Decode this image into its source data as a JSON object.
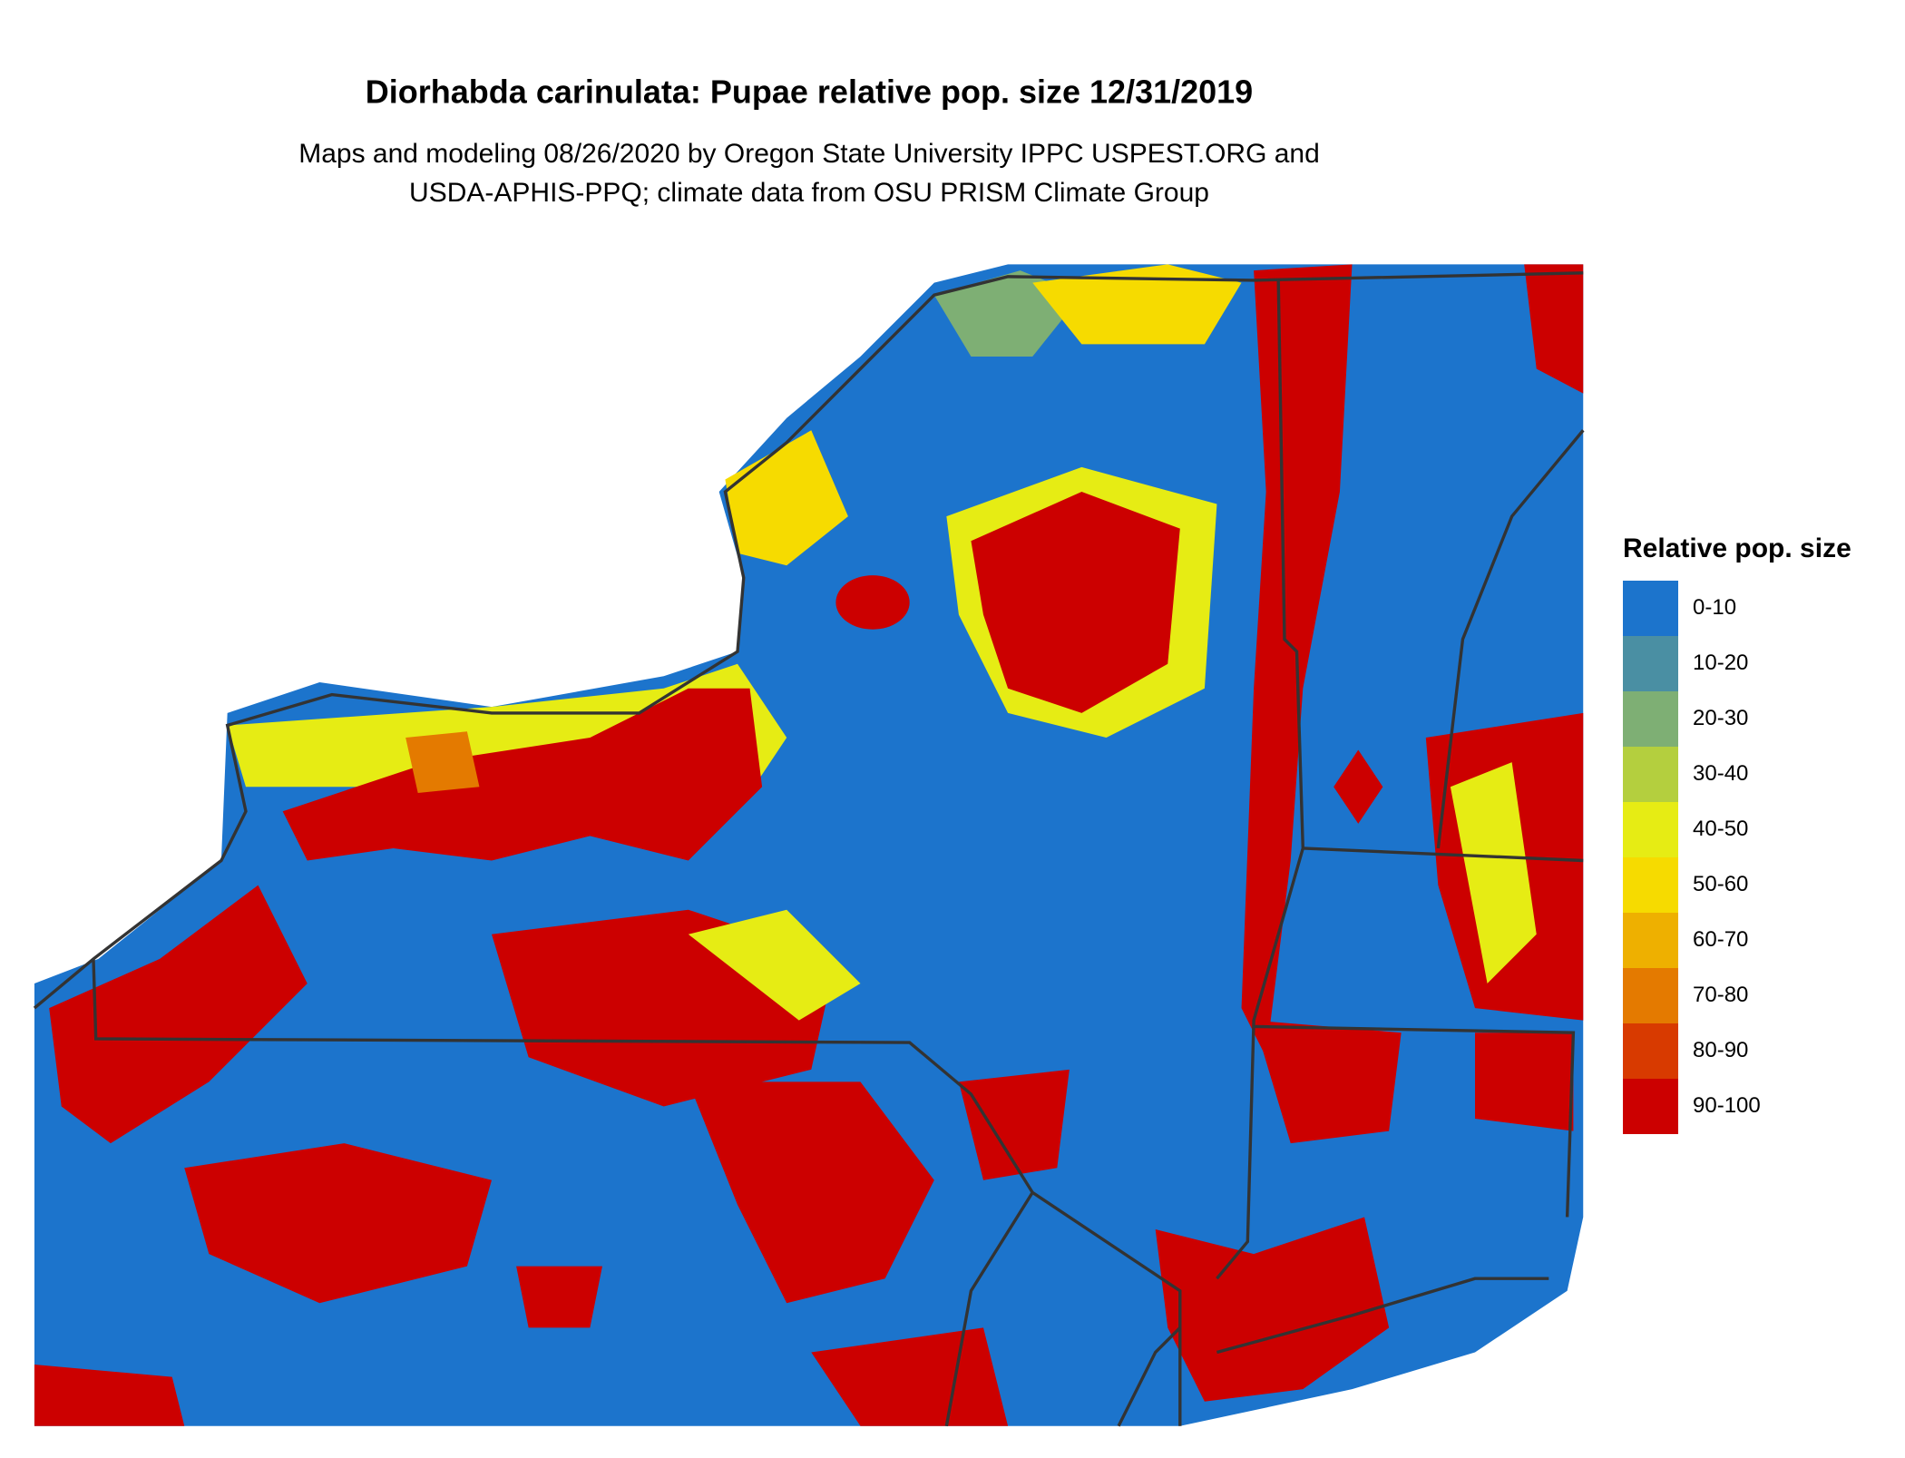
{
  "title": "Diorhabda carinulata: Pupae relative pop. size 12/31/2019",
  "subtitle": [
    "Maps and modeling 08/26/2020 by Oregon State University IPPC USPEST.ORG and",
    "USDA-APHIS-PPQ; climate data from OSU PRISM Climate Group"
  ],
  "legend": {
    "title": "Relative pop. size",
    "items": [
      {
        "label": "0-10",
        "color": "#1c74cc"
      },
      {
        "label": "10-20",
        "color": "#4a8fa3"
      },
      {
        "label": "20-30",
        "color": "#7eaf74"
      },
      {
        "label": "30-40",
        "color": "#b4cf3e"
      },
      {
        "label": "40-50",
        "color": "#e6ec14"
      },
      {
        "label": "50-60",
        "color": "#f6db00"
      },
      {
        "label": "60-70",
        "color": "#eeb000"
      },
      {
        "label": "70-80",
        "color": "#e47a00"
      },
      {
        "label": "80-90",
        "color": "#d83a00"
      },
      {
        "label": "90-100",
        "color": "#cc0000"
      }
    ]
  }
}
